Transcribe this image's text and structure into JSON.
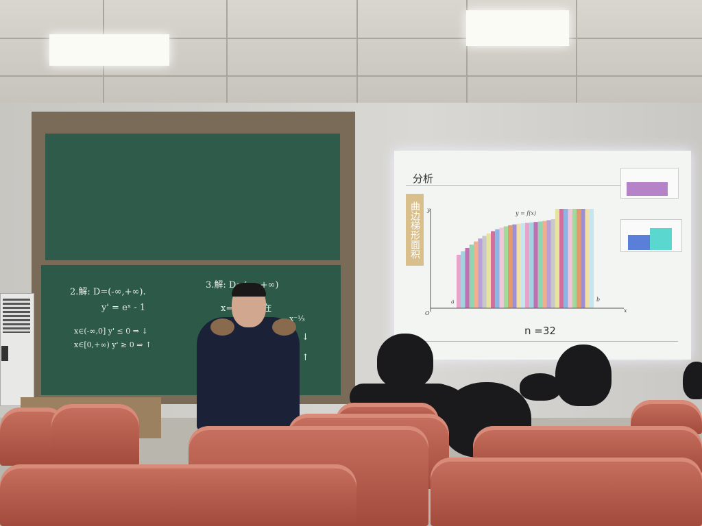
{
  "chalkboard": {
    "left": [
      "2.解: D=(-∞,+∞).",
      "y' = eˣ - 1",
      "x∈(-∞,0]   y' ≤ 0  ⇒ ↓",
      "x∈[0,+∞)   y' ≥ 0  ⇒ ↑"
    ],
    "right": [
      "3.解: D=(-∞,+∞)",
      "x=  数不存在",
      "x⁻⅓",
      "⇒  ↓",
      "⇒  ↑"
    ]
  },
  "slide": {
    "title": "分析",
    "side_label": "曲边梯形面积",
    "curve_label": "y = f(x)",
    "axis_y": "y",
    "axis_x": "x",
    "origin": "O",
    "a": "a",
    "b": "b",
    "n_label": "n =32",
    "bar_colors": [
      "#e7a3c8",
      "#9fd4e0",
      "#c06fb3",
      "#8fd6b0",
      "#f0b090",
      "#b9a0d8",
      "#c8c8c8",
      "#e6e2a0",
      "#d36f9a",
      "#8bb5e6",
      "#f2c5d8",
      "#a3d99a",
      "#e39a6d",
      "#9e8fd1",
      "#f0e0a8",
      "#c3e6f0"
    ]
  },
  "colors": {
    "chalkboard": "#2d5a48",
    "seats": "#b85a48",
    "screen": "#f3f5f2"
  }
}
